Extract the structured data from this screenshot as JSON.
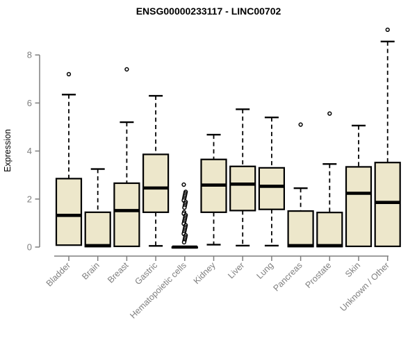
{
  "chart_data": {
    "type": "boxplot",
    "title": "ENSG00000233117 - LINC00702",
    "ylabel": "Expression",
    "y_axis": {
      "ticks": [
        0,
        2,
        4,
        6,
        8
      ],
      "range": [
        0,
        9.3
      ],
      "grid": false
    },
    "legend": null,
    "categories": [
      "Bladder",
      "Brain",
      "Breast",
      "Gastric",
      "Hematopoietic cells",
      "Kidney",
      "Liver",
      "Lung",
      "Pancreas",
      "Prostate",
      "Skin",
      "Unknown / Other"
    ],
    "series": [
      {
        "category": "Bladder",
        "whisker_low": 0.08,
        "q1": 0.08,
        "median": 1.32,
        "q3": 2.85,
        "whisker_high": 6.35,
        "outliers": [
          7.2
        ]
      },
      {
        "category": "Brain",
        "whisker_low": 0.02,
        "q1": 0.02,
        "median": 0.06,
        "q3": 1.45,
        "whisker_high": 3.25,
        "outliers": []
      },
      {
        "category": "Breast",
        "whisker_low": 0.03,
        "q1": 0.03,
        "median": 1.52,
        "q3": 2.66,
        "whisker_high": 5.2,
        "outliers": [
          7.4
        ]
      },
      {
        "category": "Gastric",
        "whisker_low": 0.05,
        "q1": 1.45,
        "median": 2.46,
        "q3": 3.86,
        "whisker_high": 6.3,
        "outliers": []
      },
      {
        "category": "Hematopoietic cells",
        "whisker_low": 0,
        "q1": 0,
        "median": 0,
        "q3": 0,
        "whisker_high": 0,
        "outliers": [
          2.6,
          2.3,
          2.24,
          2.18,
          2.12,
          2.06,
          2.0,
          1.94,
          1.88,
          1.82,
          1.76,
          1.7,
          1.64,
          1.45,
          1.39,
          1.33,
          1.27,
          1.21,
          1.15,
          1.09,
          1.03,
          0.97,
          0.91,
          0.85,
          0.79,
          0.73,
          0.67,
          0.61,
          0.55,
          0.49,
          0.43,
          0.37,
          0.31,
          0.25,
          0.2
        ]
      },
      {
        "category": "Kidney",
        "whisker_low": 0.1,
        "q1": 1.45,
        "median": 2.58,
        "q3": 3.65,
        "whisker_high": 4.68,
        "outliers": []
      },
      {
        "category": "Liver",
        "whisker_low": 0.06,
        "q1": 1.52,
        "median": 2.62,
        "q3": 3.36,
        "whisker_high": 5.74,
        "outliers": []
      },
      {
        "category": "Lung",
        "whisker_low": 0.06,
        "q1": 1.57,
        "median": 2.53,
        "q3": 3.3,
        "whisker_high": 5.4,
        "outliers": []
      },
      {
        "category": "Pancreas",
        "whisker_low": 0.02,
        "q1": 0.02,
        "median": 0.06,
        "q3": 1.5,
        "whisker_high": 2.45,
        "outliers": [
          5.1
        ]
      },
      {
        "category": "Prostate",
        "whisker_low": 0.02,
        "q1": 0.02,
        "median": 0.06,
        "q3": 1.44,
        "whisker_high": 3.46,
        "outliers": [
          5.56
        ]
      },
      {
        "category": "Skin",
        "whisker_low": 0.03,
        "q1": 0.03,
        "median": 2.24,
        "q3": 3.34,
        "whisker_high": 5.06,
        "outliers": []
      },
      {
        "category": "Unknown / Other",
        "whisker_low": 0.03,
        "q1": 0.03,
        "median": 1.86,
        "q3": 3.52,
        "whisker_high": 8.56,
        "outliers": [
          9.05
        ]
      }
    ],
    "colors": {
      "box_fill": "#ede7cb",
      "box_stroke": "#000000",
      "median": "#000000",
      "whisker": "#000000",
      "outlier_stroke": "#000000",
      "outlier_fill": "#ffffff",
      "axis": "#7e7e7e",
      "tick_text": "#7f7f7f",
      "title_text": "#000000"
    }
  }
}
